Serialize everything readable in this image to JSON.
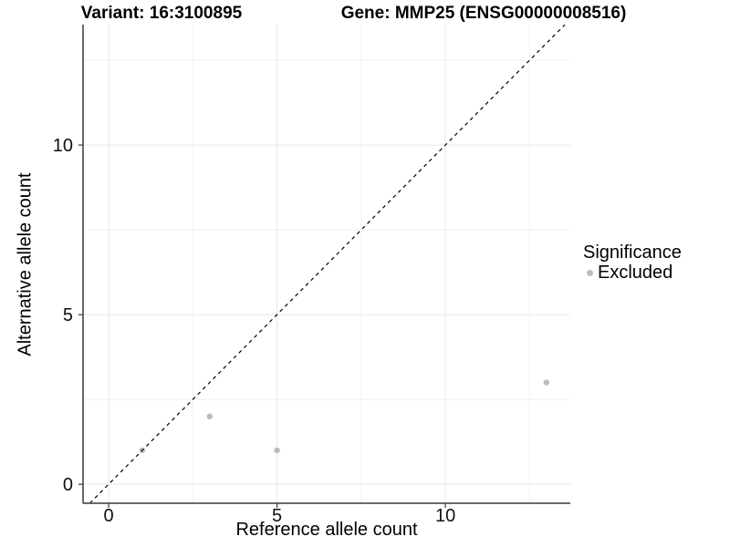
{
  "titles": {
    "left": "Variant: 16:3100895",
    "right": "Gene: MMP25 (ENSG00000008516)"
  },
  "chart_data": {
    "type": "scatter",
    "title": "Variant: 16:3100895 — Gene: MMP25 (ENSG00000008516)",
    "xlabel": "Reference allele count",
    "ylabel": "Alternative allele count",
    "xlim": [
      -0.76,
      13.71
    ],
    "ylim": [
      -0.56,
      13.55
    ],
    "x_tick_values": [
      0,
      5,
      10
    ],
    "x_tick_labels": [
      "0",
      "5",
      "10"
    ],
    "y_tick_values": [
      0,
      5,
      10
    ],
    "y_tick_labels": [
      "0",
      "5",
      "10"
    ],
    "x_minor_gridlines": [
      2.5,
      7.5,
      12.5
    ],
    "y_minor_gridlines": [
      2.5,
      7.5,
      12.5
    ],
    "grid": true,
    "series": [
      {
        "name": "Excluded",
        "marker": "circle",
        "color": "#bcbcbc",
        "points": [
          {
            "x": 1,
            "y": 1
          },
          {
            "x": 3,
            "y": 2
          },
          {
            "x": 5,
            "y": 1
          },
          {
            "x": 13,
            "y": 3
          }
        ]
      }
    ],
    "reference_line": {
      "kind": "identity",
      "slope": 1,
      "intercept": 0,
      "style": "dashed",
      "color": "#000000"
    },
    "legend": {
      "title": "Significance",
      "position": "right",
      "entries": [
        {
          "label": "Excluded",
          "marker": "circle",
          "color": "#bcbcbc"
        }
      ]
    }
  },
  "colors": {
    "background": "#ffffff",
    "grid_major": "#e7e7e7",
    "grid_minor": "#f1f1f1",
    "axis_line": "#3a3a3a",
    "tick_label": "#111111",
    "point": "#bcbcbc"
  }
}
